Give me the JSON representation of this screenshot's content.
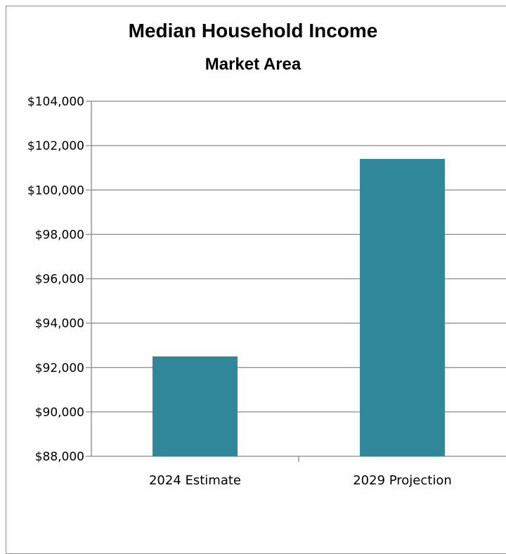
{
  "chart_data": {
    "type": "bar",
    "title": "Median Household Income",
    "subtitle": "Market Area",
    "categories": [
      "2024 Estimate",
      "2029 Projection"
    ],
    "values": [
      92500,
      101400
    ],
    "ylim": [
      88000,
      104000
    ],
    "ytick_step": 2000,
    "ytick_labels": [
      "$88,000",
      "$90,000",
      "$92,000",
      "$94,000",
      "$96,000",
      "$98,000",
      "$100,000",
      "$102,000",
      "$104,000"
    ],
    "grid": true,
    "legend": "none",
    "bar_color": "#31879A",
    "grid_color": "#888888"
  }
}
